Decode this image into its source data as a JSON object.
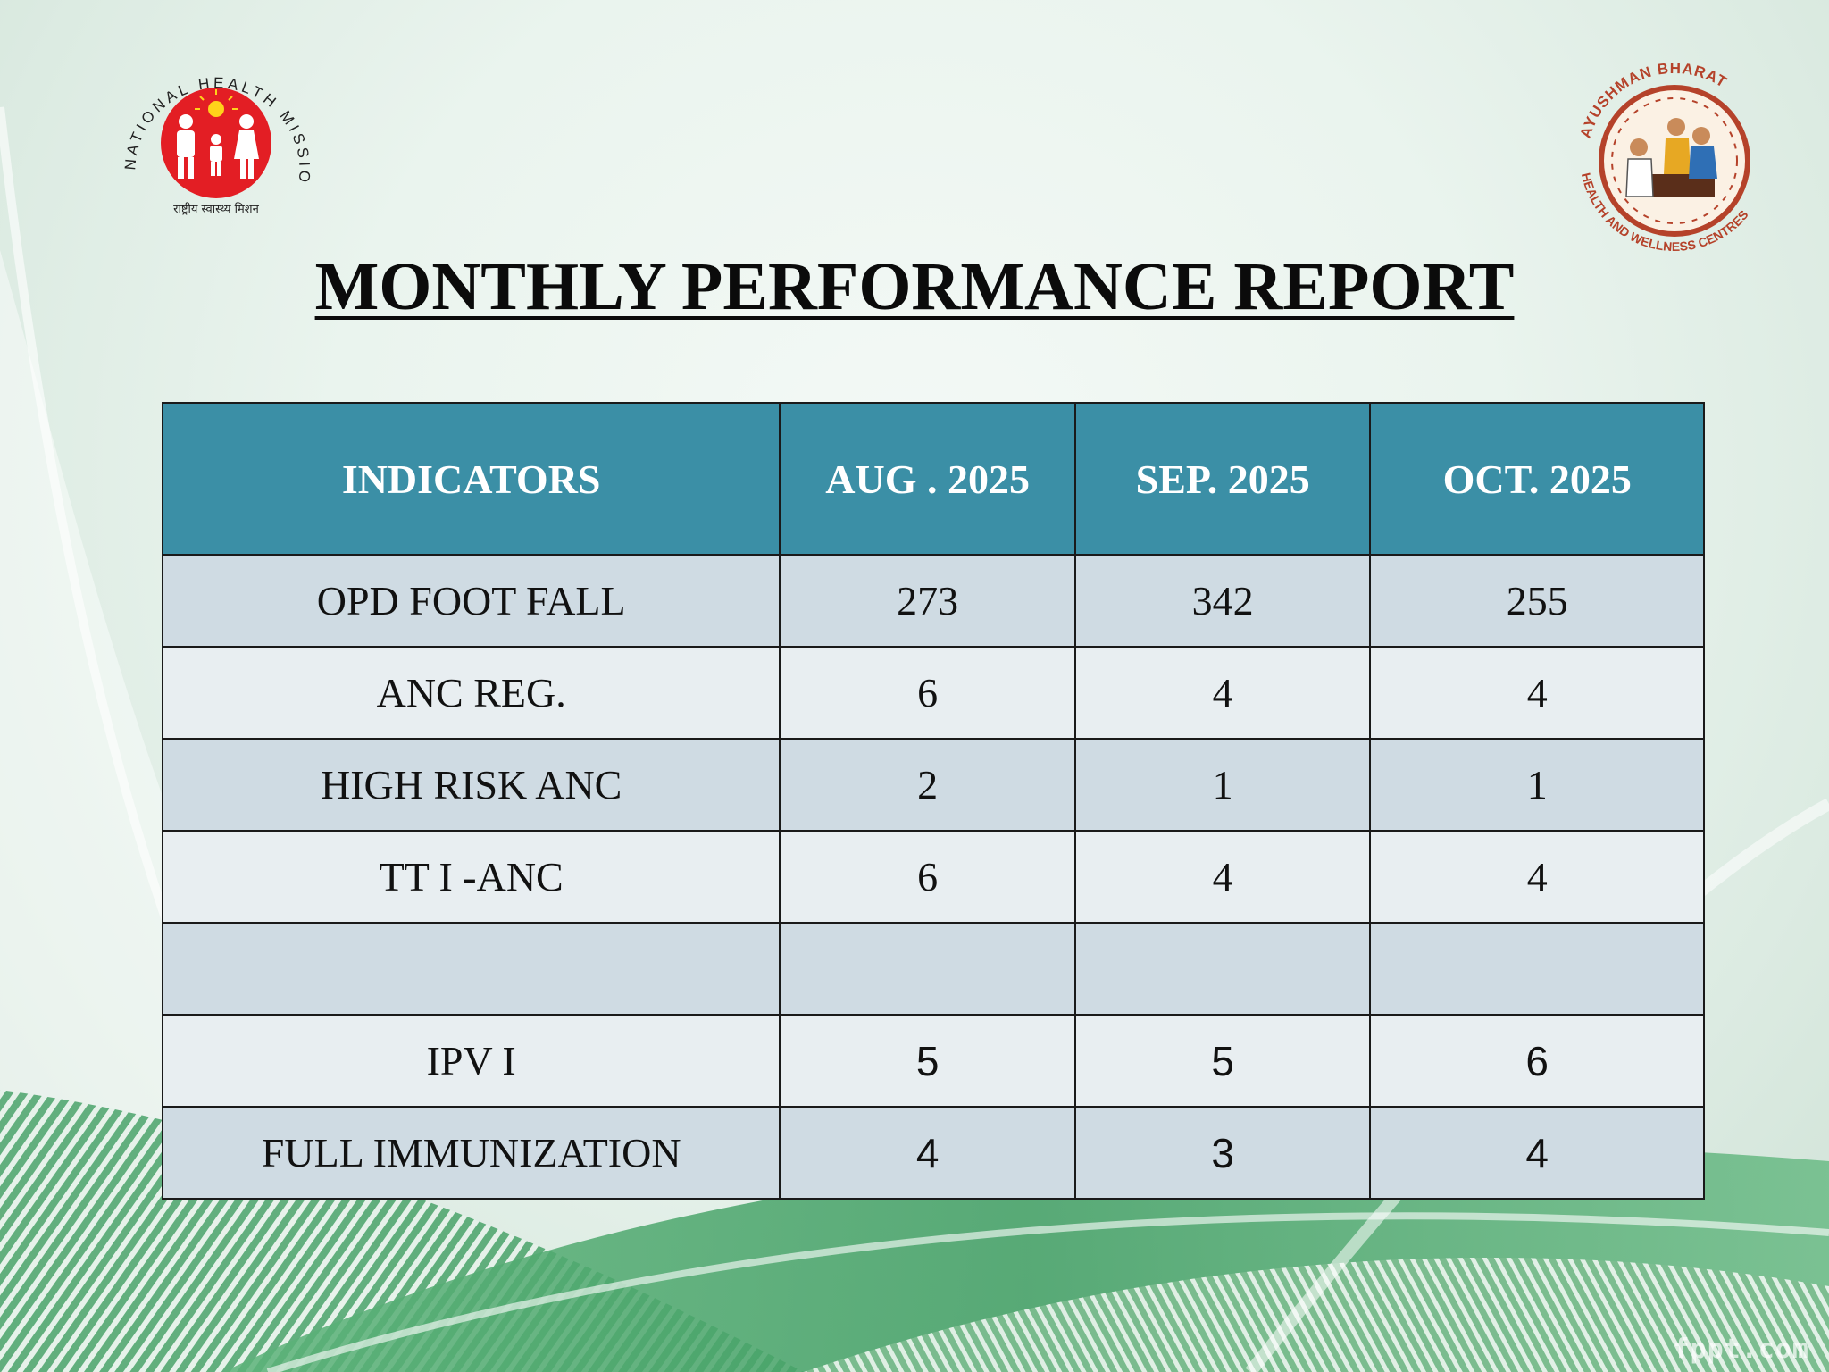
{
  "colors": {
    "header_bg": "#3b8fa6",
    "row_dark": "#cfdbe3",
    "row_light": "#e8eef1",
    "nhm_red": "#e31e24",
    "ab_brown": "#b5422a"
  },
  "logos": {
    "nhm": {
      "arc_text": "NATIONAL HEALTH MISSION",
      "hindi": "राष्ट्रीय स्वास्थ्य मिशन",
      "icon": "family-sun-icon"
    },
    "ab": {
      "top_text": "AYUSHMAN BHARAT",
      "bottom_text": "HEALTH AND WELLNESS CENTRES",
      "icon": "doctor-patient-icon"
    }
  },
  "title": "MONTHLY PERFORMANCE REPORT",
  "table": {
    "headers": [
      "INDICATORS",
      "AUG . 2025",
      "SEP. 2025",
      "OCT. 2025"
    ],
    "rows": [
      [
        "OPD FOOT FALL",
        "273",
        "342",
        "255"
      ],
      [
        "ANC REG.",
        "6",
        "4",
        "4"
      ],
      [
        "HIGH RISK ANC",
        "2",
        "1",
        "1"
      ],
      [
        "TT I -ANC",
        "6",
        "4",
        "4"
      ],
      [
        "",
        "",
        "",
        ""
      ],
      [
        "IPV I",
        "5",
        "5",
        "6"
      ],
      [
        "FULL IMMUNIZATION",
        "4",
        "3",
        "4"
      ]
    ]
  },
  "watermark": "fppt.com"
}
